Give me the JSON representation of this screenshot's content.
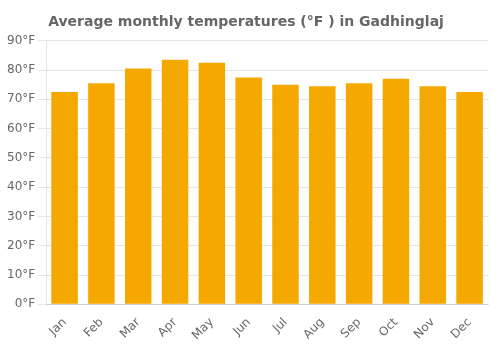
{
  "chart_data": {
    "type": "bar",
    "title": "Average monthly temperatures (°F ) in Gadhinglaj",
    "categories": [
      "Jan",
      "Feb",
      "Mar",
      "Apr",
      "May",
      "Jun",
      "Jul",
      "Aug",
      "Sep",
      "Oct",
      "Nov",
      "Dec"
    ],
    "values": [
      72.5,
      75.5,
      80.5,
      83.5,
      82.5,
      77.5,
      75.0,
      74.5,
      75.5,
      77.0,
      74.5,
      72.5
    ],
    "color": "#F5A800",
    "ylim": [
      0,
      90
    ],
    "yticks": [
      {
        "value": 0,
        "label": "0°F"
      },
      {
        "value": 10,
        "label": "10°F"
      },
      {
        "value": 20,
        "label": "20°F"
      },
      {
        "value": 30,
        "label": "30°F"
      },
      {
        "value": 40,
        "label": "40°F"
      },
      {
        "value": 50,
        "label": "50°F"
      },
      {
        "value": 60,
        "label": "60°F"
      },
      {
        "value": 70,
        "label": "70°F"
      },
      {
        "value": 80,
        "label": "80°F"
      },
      {
        "value": 90,
        "label": "90°F"
      }
    ],
    "grid": true
  }
}
